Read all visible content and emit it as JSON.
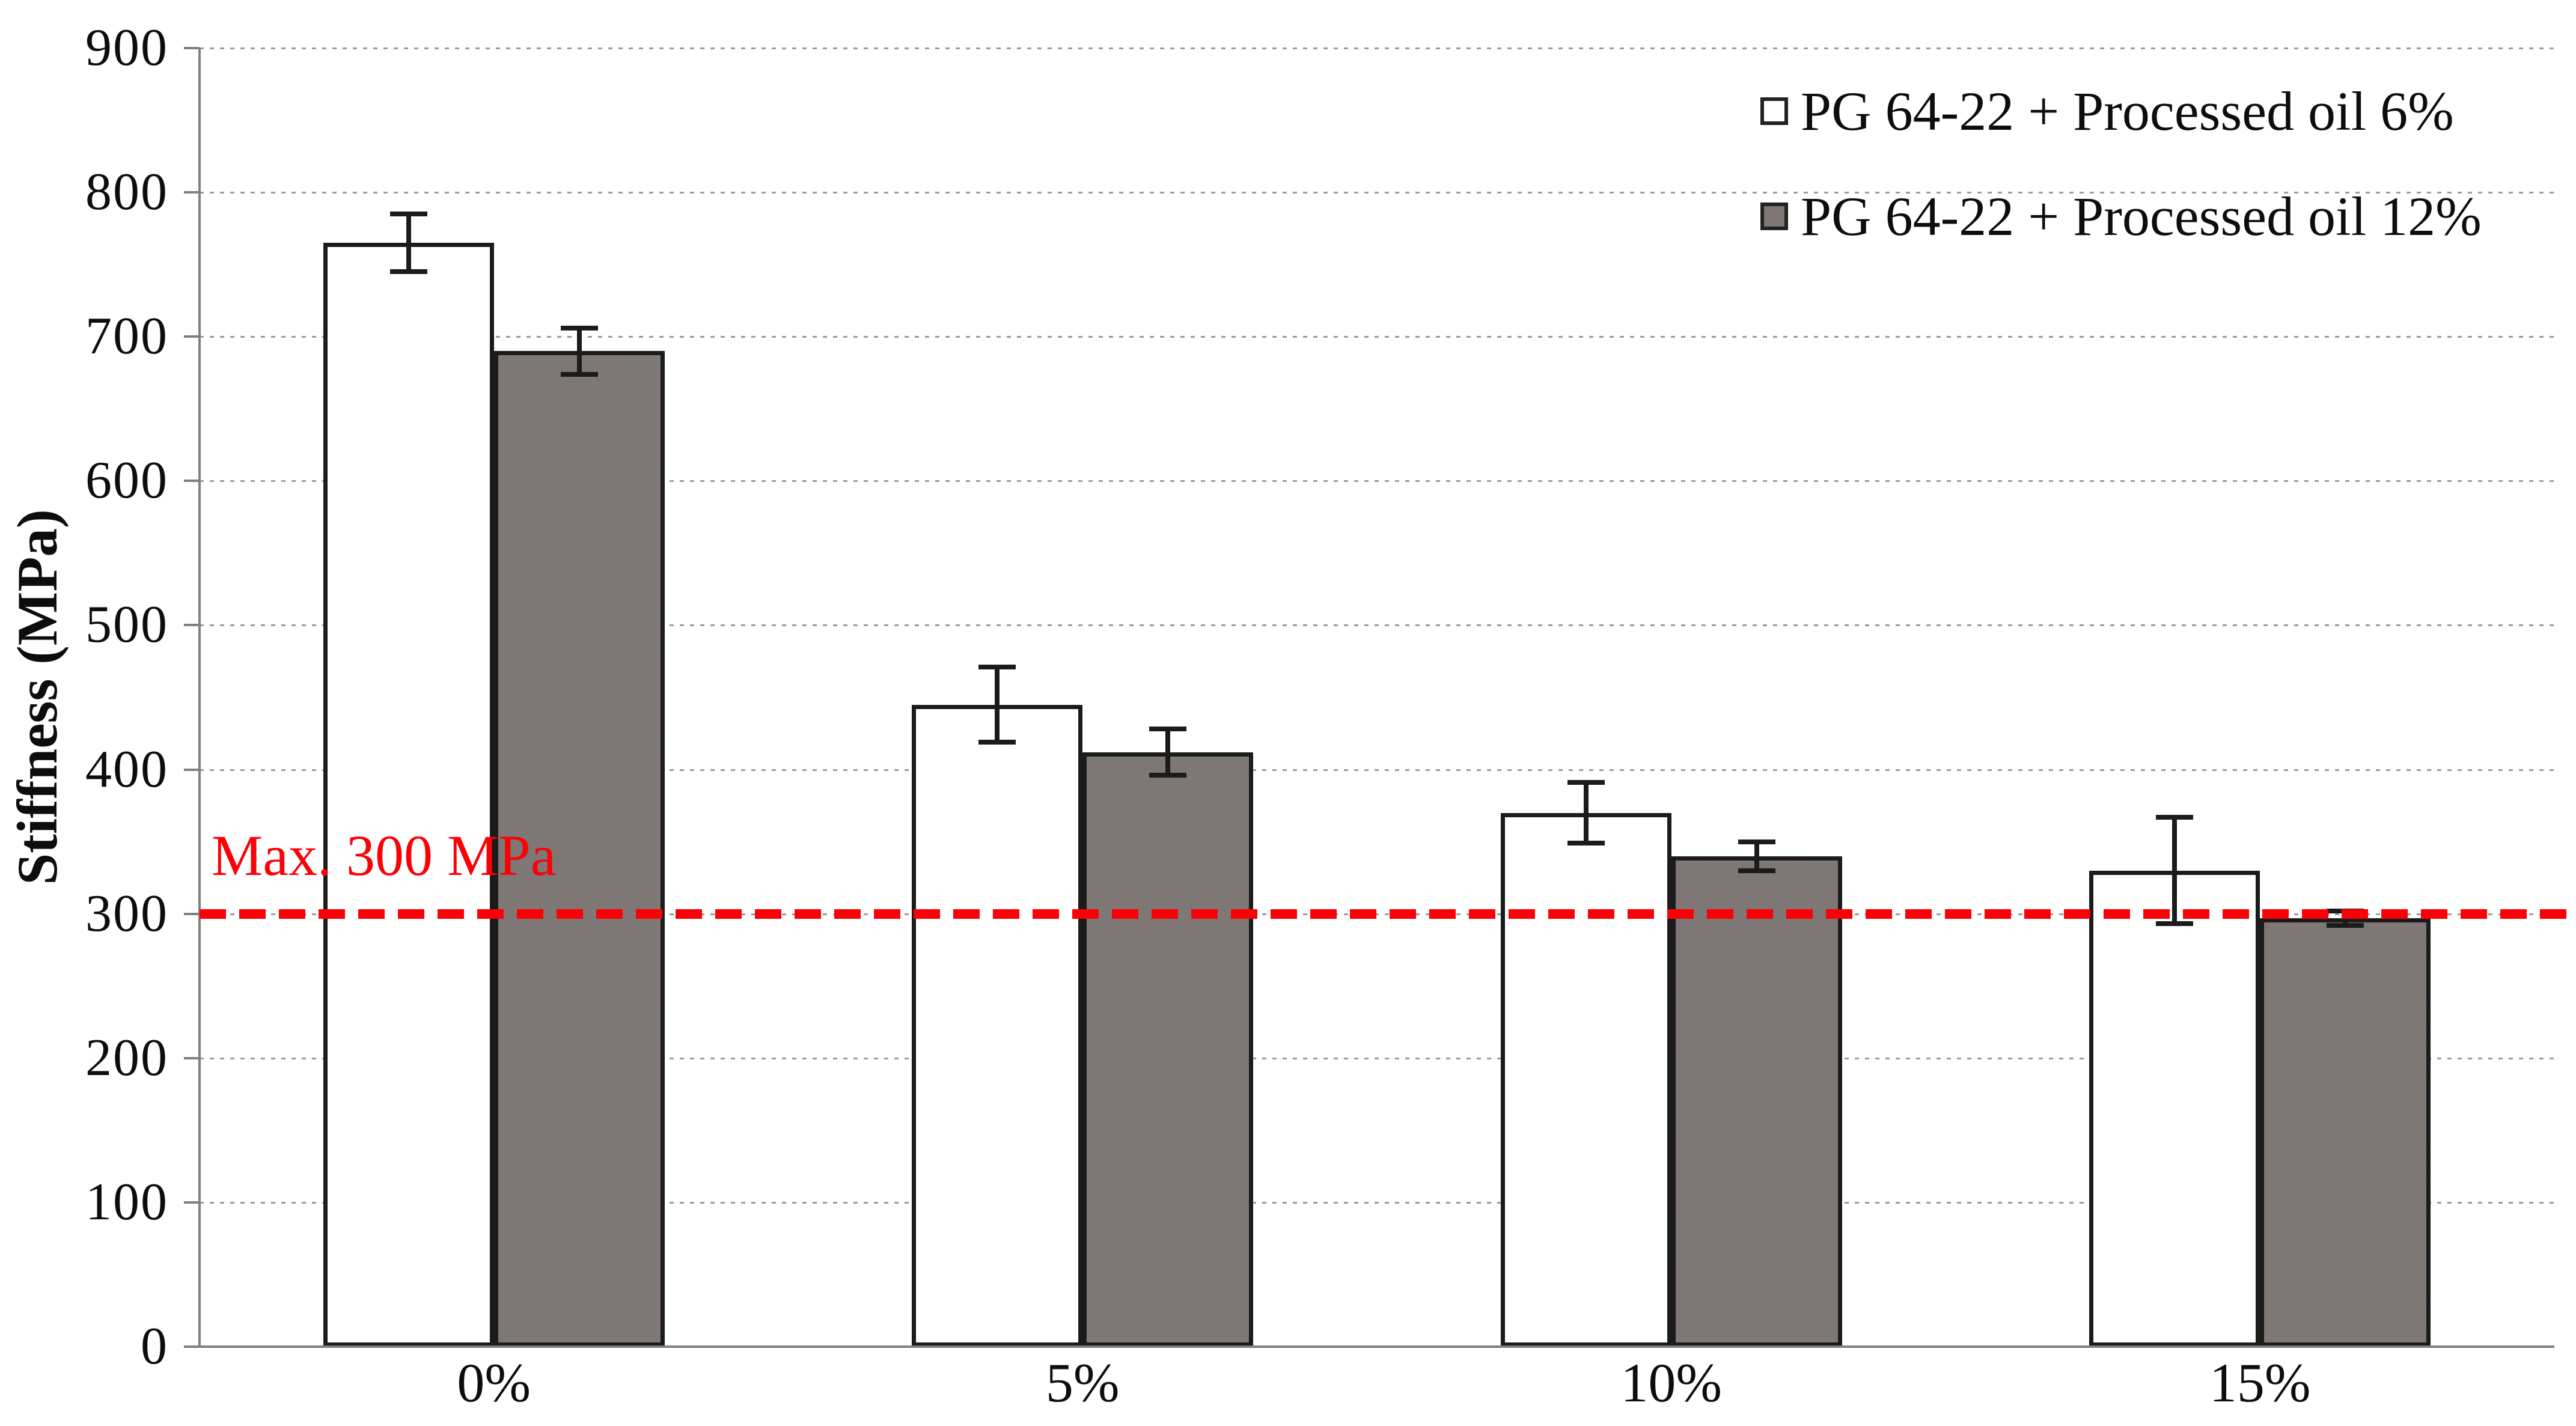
{
  "figure": {
    "background": "#ffffff"
  },
  "y_axis": {
    "title": "Stiffness (MPa)",
    "min": 0,
    "max": 900,
    "tick_step": 100,
    "tick_labels": [
      "0",
      "100",
      "200",
      "300",
      "400",
      "500",
      "600",
      "700",
      "800",
      "900"
    ]
  },
  "x_axis": {
    "categories": [
      "0%",
      "5%",
      "10%",
      "15%"
    ]
  },
  "legend": {
    "position": "top-right",
    "entries": [
      {
        "label": "PG 64-22 + Processed oil 6%",
        "swatch_color": "#ffffff"
      },
      {
        "label": "PG 64-22 + Processed oil 12%",
        "swatch_color": "#7d7a78"
      }
    ]
  },
  "reference_line": {
    "label": "Max. 300 MPa",
    "value": 300,
    "color": "#fb0006",
    "style": "dashed"
  },
  "chart_data": {
    "type": "bar",
    "title": "",
    "xlabel": "",
    "ylabel": "Stiffness (MPa)",
    "ylim": [
      0,
      900
    ],
    "yticks": [
      0,
      100,
      200,
      300,
      400,
      500,
      600,
      700,
      800,
      900
    ],
    "grid": "horizontal-dotted",
    "legend_position": "top-right",
    "categories": [
      "0%",
      "5%",
      "10%",
      "15%"
    ],
    "series": [
      {
        "name": "PG 64-22 + Processed oil 6%",
        "color": "#ffffff",
        "border_color": "#1b1b1b",
        "values": [
          765,
          445,
          370,
          330
        ],
        "errors": [
          20,
          26,
          21,
          37
        ]
      },
      {
        "name": "PG 64-22 + Processed oil 12%",
        "color": "#7d7a78",
        "border_color": "#1b1b1b",
        "values": [
          690,
          412,
          340,
          297
        ],
        "errors": [
          16,
          16,
          10,
          5
        ]
      }
    ],
    "annotation": {
      "text": "Max. 300 MPa",
      "line_value": 300,
      "style": "red-dashed"
    }
  }
}
